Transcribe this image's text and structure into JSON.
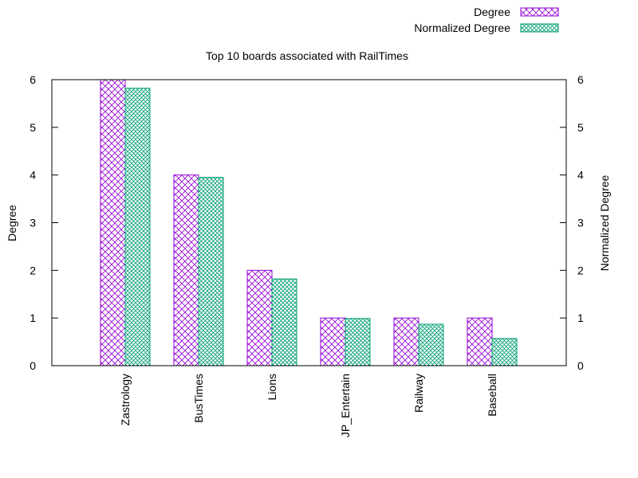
{
  "chart_data": {
    "type": "bar",
    "title": "Top 10 boards associated with RailTimes",
    "ylabel": "Degree",
    "y2label": "Normalized Degree",
    "ylim": [
      0,
      6
    ],
    "y2lim": [
      0,
      6
    ],
    "yticks": [
      "0",
      "1",
      "2",
      "3",
      "4",
      "5",
      "6"
    ],
    "y2ticks": [
      "0",
      "1",
      "2",
      "3",
      "4",
      "5",
      "6"
    ],
    "categories": [
      "Zastrology",
      "BusTimes",
      "Lions",
      "JP_Entertain",
      "Railway",
      "Baseball"
    ],
    "series": [
      {
        "name": "Degree",
        "values": [
          6,
          4,
          2,
          1,
          1,
          1
        ],
        "color": "#9400d3",
        "pattern": "crosshatch"
      },
      {
        "name": "Normalized Degree",
        "values": [
          5.82,
          3.95,
          1.82,
          0.99,
          0.87,
          0.57
        ],
        "color": "#009e73",
        "pattern": "dense-crosshatch"
      }
    ],
    "legend": "top-right",
    "grid": false
  }
}
